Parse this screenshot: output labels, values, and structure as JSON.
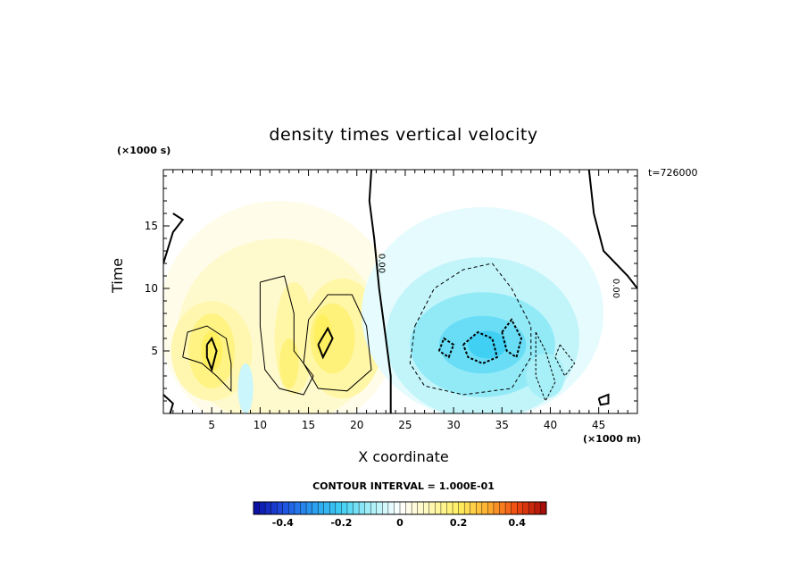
{
  "chart_data": {
    "type": "heatmap",
    "title": "density times vertical velocity",
    "xlabel": "X coordinate",
    "ylabel": "Time",
    "x_units": "(×1000 m)",
    "y_units": "(×1000 s)",
    "time_annotation": "t=726000",
    "xlim": [
      0,
      49
    ],
    "ylim": [
      0,
      19.5
    ],
    "x_tick_labels": [
      "5",
      "10",
      "15",
      "20",
      "25",
      "30",
      "35",
      "40",
      "45"
    ],
    "x_ticks": [
      5,
      10,
      15,
      20,
      25,
      30,
      35,
      40,
      45
    ],
    "y_tick_labels": [
      "5",
      "10",
      "15"
    ],
    "y_ticks": [
      5,
      10,
      15
    ],
    "contour_interval_label": "CONTOUR INTERVAL = 1.000E-01",
    "contour_interval": 0.1,
    "zero_contour_labels": [
      "0.00",
      "0.00"
    ],
    "colorbar": {
      "min": -0.5,
      "max": 0.5,
      "tick_labels": [
        "-0.4",
        "-0.2",
        "0",
        "0.2",
        "0.4"
      ],
      "ticks": [
        -0.4,
        -0.2,
        0,
        0.2,
        0.4
      ],
      "stops": [
        {
          "v": -0.5,
          "c": "#0a0aa0"
        },
        {
          "v": -0.4,
          "c": "#1f4fe0"
        },
        {
          "v": -0.3,
          "c": "#2a9cf0"
        },
        {
          "v": -0.2,
          "c": "#3fd0f4"
        },
        {
          "v": -0.1,
          "c": "#a8f0f8"
        },
        {
          "v": 0,
          "c": "#ffffff"
        },
        {
          "v": 0.1,
          "c": "#fff8b8"
        },
        {
          "v": 0.2,
          "c": "#fff060"
        },
        {
          "v": 0.3,
          "c": "#ffb030"
        },
        {
          "v": 0.4,
          "c": "#f04810"
        },
        {
          "v": 0.5,
          "c": "#a00808"
        }
      ]
    },
    "field_features": [
      {
        "name": "positive region (upward flux)",
        "x_range": [
          0,
          24
        ],
        "t_range": [
          0,
          18
        ],
        "peak_value": 0.2,
        "peak_at": [
          5,
          5
        ]
      },
      {
        "name": "negative region (downward flux)",
        "x_range": [
          25,
          44
        ],
        "t_range": [
          0,
          17
        ],
        "peak_value": -0.2,
        "peak_at": [
          33,
          5
        ]
      }
    ]
  }
}
